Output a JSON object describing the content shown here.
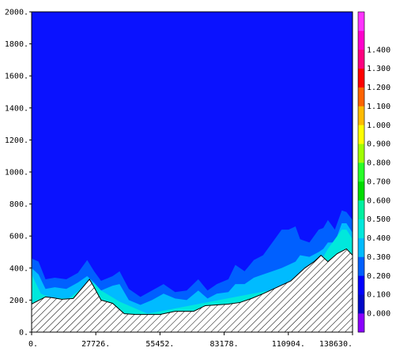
{
  "chart_data": {
    "type": "heatmap",
    "xlim": [
      0,
      138630
    ],
    "ylim": [
      0,
      2000
    ],
    "x_tick_labels": [
      "0.",
      "27726.",
      "55452.",
      "83178.",
      "110904.",
      "138630."
    ],
    "x_tick_values": [
      0,
      27726,
      55452,
      83178,
      110904,
      138630
    ],
    "y_tick_labels": [
      "0.",
      "200.",
      "400.",
      "600.",
      "800.",
      "1000.",
      "1200.",
      "1400.",
      "1600.",
      "1800.",
      "2000."
    ],
    "y_tick_values": [
      0,
      200,
      400,
      600,
      800,
      1000,
      1200,
      1400,
      1600,
      1800,
      2000
    ],
    "background_value_color": "#0a12ff",
    "colorbar": {
      "labels": [
        "0.000",
        "0.100",
        "0.200",
        "0.300",
        "0.400",
        "0.500",
        "0.600",
        "0.700",
        "0.800",
        "0.900",
        "1.000",
        "1.100",
        "1.200",
        "1.300",
        "1.400"
      ],
      "colors": [
        "#8a00ff",
        "#0008c8",
        "#0000ff",
        "#0060ff",
        "#00bbff",
        "#00e8dc",
        "#00f0a0",
        "#00dc00",
        "#28ff28",
        "#a0ff00",
        "#ffff00",
        "#ffbb00",
        "#ff6400",
        "#ff0000",
        "#ff0080",
        "#ff00cc",
        "#ff33ff"
      ]
    },
    "terrain": {
      "x": [
        0,
        6000,
        9000,
        13000,
        18000,
        25000,
        27000,
        30000,
        35000,
        40000,
        45000,
        50000,
        55452,
        62000,
        70000,
        75000,
        80000,
        85000,
        90000,
        95000,
        100000,
        106000,
        112000,
        118000,
        122000,
        125000,
        128000,
        132000,
        136000,
        138630
      ],
      "y": [
        175,
        220,
        215,
        205,
        210,
        330,
        280,
        200,
        180,
        115,
        110,
        110,
        110,
        130,
        130,
        165,
        170,
        175,
        185,
        210,
        240,
        280,
        320,
        400,
        440,
        480,
        440,
        490,
        520,
        480
      ]
    },
    "contour_0_2": {
      "x": [
        0,
        3000,
        6000,
        10000,
        15000,
        20000,
        24000,
        27000,
        30000,
        35000,
        38000,
        42000,
        47000,
        52000,
        57000,
        62000,
        67000,
        72000,
        76000,
        80000,
        85000,
        88000,
        92000,
        96000,
        100000,
        104000,
        108000,
        111000,
        114000,
        116000,
        120000,
        124000,
        126000,
        128000,
        131000,
        134000,
        136000,
        138630
      ],
      "y": [
        460,
        440,
        330,
        340,
        330,
        370,
        450,
        380,
        320,
        350,
        380,
        270,
        220,
        260,
        300,
        250,
        260,
        330,
        260,
        300,
        330,
        420,
        380,
        450,
        480,
        560,
        640,
        640,
        660,
        580,
        560,
        640,
        650,
        700,
        640,
        760,
        750,
        700
      ]
    },
    "contour_0_3": {
      "x": [
        0,
        3000,
        6000,
        10000,
        15000,
        20000,
        24000,
        27000,
        30000,
        35000,
        38000,
        42000,
        47000,
        52000,
        57000,
        62000,
        67000,
        72000,
        76000,
        80000,
        85000,
        88000,
        92000,
        96000,
        100000,
        104000,
        108000,
        111000,
        114000,
        116000,
        120000,
        124000,
        126000,
        128000,
        131000,
        134000,
        136000,
        138630
      ],
      "y": [
        400,
        360,
        270,
        280,
        270,
        310,
        350,
        310,
        260,
        290,
        300,
        200,
        170,
        200,
        240,
        210,
        200,
        260,
        210,
        240,
        250,
        300,
        300,
        340,
        360,
        380,
        400,
        420,
        440,
        480,
        470,
        500,
        520,
        560,
        560,
        680,
        680,
        620
      ]
    },
    "contour_0_4": {
      "x": [
        0,
        2000,
        4000,
        8000,
        16000,
        23000,
        27000,
        30000,
        38000,
        50000,
        110000,
        120000,
        126000,
        128000,
        130000,
        132000,
        134000,
        136000,
        138630
      ],
      "y": [
        360,
        300,
        240,
        215,
        210,
        290,
        305,
        260,
        190,
        115,
        280,
        420,
        470,
        520,
        560,
        600,
        640,
        640,
        580
      ]
    }
  }
}
